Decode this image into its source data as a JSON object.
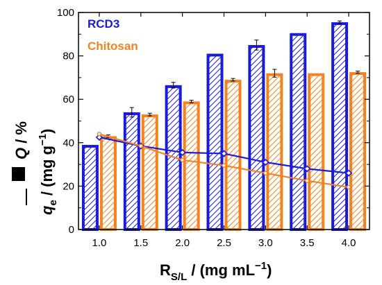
{
  "chart_data": {
    "type": "bar",
    "categories": [
      "1.0",
      "1.5",
      "2.0",
      "2.5",
      "3.0",
      "3.5",
      "4.0"
    ],
    "series": [
      {
        "name": "RCD3",
        "kind": "bar",
        "color": "#1a1adf",
        "values": [
          39,
          54,
          66.5,
          81,
          85,
          90.5,
          95.5
        ],
        "errors": [
          0,
          2.2,
          1.3,
          0,
          2.3,
          0,
          0.6
        ]
      },
      {
        "name": "Chitosan",
        "kind": "bar",
        "color": "#f5821f",
        "values": [
          43,
          53,
          59,
          69,
          72,
          72,
          72.5
        ],
        "errors": [
          0.6,
          0.6,
          0.6,
          0.6,
          1.8,
          0,
          0.5
        ]
      }
    ],
    "lines": [
      {
        "series": "RCD3",
        "kind": "line",
        "color": "#1a1adf",
        "values": [
          42.5,
          38.5,
          35.5,
          35,
          31,
          28,
          26
        ]
      },
      {
        "series": "Chitosan",
        "kind": "line",
        "color": "#f5821f",
        "values": [
          44,
          38.5,
          32,
          29.5,
          26,
          22.5,
          19.5
        ]
      }
    ],
    "ylim": [
      0,
      100
    ],
    "yticks": [
      "0",
      "20",
      "40",
      "60",
      "80",
      "100"
    ],
    "xlabel": {
      "main": "R",
      "sub": "S/L",
      "rest": " / (mg mL",
      "sup": "−1",
      "end": ")"
    },
    "ylabel_bar": {
      "italic": "Q",
      "rest": " / %"
    },
    "ylabel_line": {
      "italic": "q",
      "sub": "e",
      "rest": " / (mg g",
      "sup": "−1",
      "end": ")"
    },
    "legend": {
      "position": "top-left",
      "entries": [
        "RCD3",
        "Chitosan"
      ]
    }
  }
}
